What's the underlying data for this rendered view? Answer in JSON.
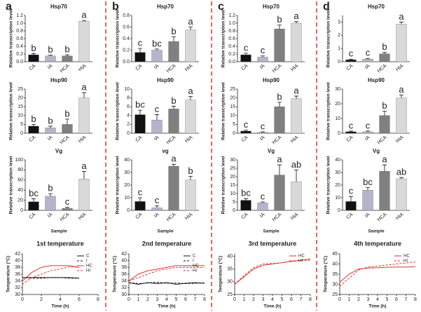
{
  "panels": [
    "a",
    "b",
    "c",
    "d"
  ],
  "chart_data": [
    {
      "type": "bar",
      "title": "Hsp70",
      "ylabel": "Relative transcription level",
      "categories": [
        "CA",
        "IA",
        "HCA",
        "HIA"
      ],
      "colors": [
        "#111111",
        "#b4b4cc",
        "#808080",
        "#d9d9d9"
      ],
      "values": [
        0.18,
        0.15,
        0.15,
        1.05
      ],
      "errors": [
        0.03,
        0.02,
        0.03,
        0.02
      ],
      "annotations": [
        "b",
        "b",
        "b",
        "a"
      ],
      "ylim": [
        0,
        1.2
      ],
      "yticks": [
        {
          "value": 0,
          "label": "0.0"
        },
        0.2,
        0.4,
        0.6,
        0.8,
        {
          "value": 1,
          "label": "1.0"
        },
        1.2
      ]
    },
    {
      "type": "bar",
      "title": "Hsp90",
      "ylabel": "Relative transcription level",
      "categories": [
        "CA",
        "IA",
        "HCA",
        "HIA"
      ],
      "colors": [
        "#111111",
        "#b4b4cc",
        "#808080",
        "#d9d9d9"
      ],
      "values": [
        4,
        3,
        5,
        20
      ],
      "errors": [
        1,
        1,
        3,
        3
      ],
      "annotations": [
        "b",
        "b",
        "b",
        "a"
      ],
      "ylim": [
        0,
        25
      ],
      "yticks": [
        0,
        5,
        10,
        15,
        20,
        25
      ]
    },
    {
      "type": "bar",
      "title": "Vg",
      "xlabel": "Sample",
      "ylabel": "Relative transcription level",
      "categories": [
        "CA",
        "IA",
        "HCA",
        "HIA"
      ],
      "colors": [
        "#111111",
        "#b4b4cc",
        "#808080",
        "#d9d9d9"
      ],
      "values": [
        17,
        28,
        4,
        62
      ],
      "errors": [
        6,
        5,
        2,
        15
      ],
      "annotations": [
        "bc",
        "b",
        "c",
        "a"
      ],
      "ylim": [
        0,
        100
      ],
      "yticks": [
        0,
        20,
        40,
        60,
        80,
        100
      ]
    },
    {
      "type": "line",
      "title": "1st temperature",
      "xlabel": "Time (h)",
      "ylabel": "Temperature (°C)",
      "x": [
        0,
        1,
        2,
        3,
        4,
        5,
        6
      ],
      "xlim": [
        0,
        8
      ],
      "xticks": [
        0,
        2,
        4,
        6,
        8
      ],
      "ylim": [
        30,
        42
      ],
      "yticks": [
        30,
        32,
        34,
        36,
        38,
        40,
        42
      ],
      "series": [
        {
          "name": "C",
          "color": "#111111",
          "dashed": false,
          "values": [
            35,
            35,
            35,
            35,
            35,
            35,
            34.8
          ]
        },
        {
          "name": "I",
          "color": "#111111",
          "dashed": true,
          "values": [
            35,
            34.8,
            34.8,
            35,
            35,
            34.8,
            34.8
          ]
        },
        {
          "name": "HC",
          "color": "#e0332b",
          "dashed": false,
          "values": [
            34,
            36.5,
            38,
            38.5,
            38.5,
            38.5,
            38
          ]
        },
        {
          "name": "HI",
          "color": "#e0332b",
          "dashed": true,
          "values": [
            33,
            35,
            36,
            37,
            37.5,
            38.2,
            38
          ]
        }
      ]
    },
    {
      "type": "bar",
      "title": "Hsp70",
      "ylabel": "Relative transcription level",
      "categories": [
        "CA",
        "IA",
        "HCA",
        "HIA"
      ],
      "colors": [
        "#111111",
        "#b4b4cc",
        "#808080",
        "#d9d9d9"
      ],
      "values": [
        0.16,
        0.2,
        0.35,
        0.55
      ],
      "errors": [
        0.07,
        0.02,
        0.08,
        0.05
      ],
      "annotations": [
        "c",
        "bc",
        "b",
        "a"
      ],
      "ylim": [
        0,
        0.8
      ],
      "yticks": [
        {
          "value": 0,
          "label": "0.0"
        },
        0.2,
        0.4,
        0.6,
        0.8
      ]
    },
    {
      "type": "bar",
      "title": "Hsp90",
      "ylabel": "Relative transcription level",
      "categories": [
        "CA",
        "IA",
        "HCA",
        "HIA"
      ],
      "colors": [
        "#111111",
        "#b4b4cc",
        "#808080",
        "#d9d9d9"
      ],
      "values": [
        4.2,
        3,
        5.5,
        7.5
      ],
      "errors": [
        1,
        1.2,
        0.6,
        0.8
      ],
      "annotations": [
        "bc",
        "c",
        "b",
        "a"
      ],
      "ylim": [
        0,
        10
      ],
      "yticks": [
        0,
        2,
        4,
        6,
        8,
        10
      ]
    },
    {
      "type": "bar",
      "title": "vg",
      "xlabel": "Sample",
      "ylabel": "Relative transcription level",
      "categories": [
        "CA",
        "IA",
        "HCA",
        "HIA"
      ],
      "colors": [
        "#111111",
        "#b4b4cc",
        "#808080",
        "#d9d9d9"
      ],
      "values": [
        7,
        2,
        35,
        24
      ],
      "errors": [
        3,
        1.5,
        1.5,
        3
      ],
      "annotations": [
        "c",
        "c",
        "a",
        "b"
      ],
      "ylim": [
        0,
        40
      ],
      "yticks": [
        0,
        10,
        20,
        30,
        40
      ]
    },
    {
      "type": "line",
      "title": "2nd temperature",
      "xlabel": "Time (h)",
      "ylabel": "Temperature (°C)",
      "x": [
        0,
        1,
        2,
        3,
        4,
        5,
        6,
        7,
        8
      ],
      "xlim": [
        0,
        8
      ],
      "xticks": [
        0,
        1,
        2,
        3,
        4,
        5,
        6,
        7,
        8
      ],
      "ylim": [
        30,
        42
      ],
      "yticks": [
        30,
        32,
        34,
        36,
        38,
        40,
        42
      ],
      "series": [
        {
          "name": "C",
          "color": "#111111",
          "dashed": false,
          "values": [
            33.5,
            33,
            33.5,
            33.2,
            33.5,
            33,
            33.3,
            33.5,
            33.3
          ]
        },
        {
          "name": "I",
          "color": "#111111",
          "dashed": true,
          "values": [
            33.5,
            33.2,
            33.4,
            33.6,
            33.3,
            33.4,
            33.2,
            33.3,
            33.4
          ]
        },
        {
          "name": "HC",
          "color": "#e0332b",
          "dashed": false,
          "values": [
            34,
            36,
            37,
            37.5,
            38,
            38.5,
            38.5,
            38.5,
            38.5
          ]
        },
        {
          "name": "HI",
          "color": "#e0332b",
          "dashed": true,
          "values": [
            34,
            35,
            36,
            37,
            37.5,
            38,
            38,
            38,
            38
          ]
        }
      ]
    },
    {
      "type": "bar",
      "title": "Hsp70",
      "ylabel": "Relative transcription level",
      "categories": [
        "CA",
        "IA",
        "HCA",
        "HIA"
      ],
      "colors": [
        "#111111",
        "#b4b4cc",
        "#808080",
        "#d9d9d9"
      ],
      "values": [
        0.18,
        0.12,
        0.85,
        1.0
      ],
      "errors": [
        0.04,
        0.03,
        0.1,
        0.04
      ],
      "annotations": [
        "c",
        "c",
        "b",
        "a"
      ],
      "ylim": [
        0,
        1.2
      ],
      "yticks": [
        {
          "value": 0,
          "label": "0.0"
        },
        0.2,
        0.4,
        0.6,
        0.8,
        {
          "value": 1,
          "label": "1.0"
        },
        1.2
      ]
    },
    {
      "type": "bar",
      "title": "Hsp90",
      "ylabel": "Relative transcription level",
      "categories": [
        "CA",
        "IA",
        "HCA",
        "HIA"
      ],
      "colors": [
        "#111111",
        "#b4b4cc",
        "#808080",
        "#d9d9d9"
      ],
      "values": [
        1.2,
        0.5,
        15,
        19.5
      ],
      "errors": [
        0.5,
        0.3,
        2.5,
        1.5
      ],
      "annotations": [
        "c",
        "c",
        "b",
        "a"
      ],
      "ylim": [
        0,
        25
      ],
      "yticks": [
        0,
        5,
        10,
        15,
        20,
        25
      ]
    },
    {
      "type": "bar",
      "title": "Vg",
      "xlabel": "Sample",
      "ylabel": "Relative transcription level",
      "categories": [
        "CA",
        "IA",
        "HCA",
        "HIA"
      ],
      "colors": [
        "#111111",
        "#b4b4cc",
        "#808080",
        "#d9d9d9"
      ],
      "values": [
        6,
        4.5,
        21,
        17
      ],
      "errors": [
        1,
        0.5,
        6,
        7
      ],
      "annotations": [
        "bc",
        "c",
        "a",
        "ab"
      ],
      "ylim": [
        0,
        30
      ],
      "yticks": [
        0,
        5,
        10,
        15,
        20,
        25,
        30
      ]
    },
    {
      "type": "line",
      "title": "3rd temperature",
      "xlabel": "Time (h)",
      "ylabel": "Temperature (°C)",
      "x": [
        0,
        1,
        2,
        3,
        4,
        5,
        6,
        7,
        8
      ],
      "xlim": [
        0,
        8
      ],
      "xticks": [
        0,
        1,
        2,
        3,
        4,
        5,
        6,
        7,
        8
      ],
      "ylim": [
        25,
        41
      ],
      "yticks": [
        25,
        30,
        35,
        40
      ],
      "series": [
        {
          "name": "HC",
          "color": "#e0332b",
          "dashed": false,
          "values": [
            29,
            32,
            35,
            36.5,
            37,
            37.5,
            38,
            38.5,
            39
          ]
        },
        {
          "name": "HI",
          "color": "#e0332b",
          "dashed": true,
          "values": [
            29,
            32.5,
            35.5,
            37,
            37.2,
            37.5,
            38,
            38.3,
            38.5
          ]
        }
      ]
    },
    {
      "type": "bar",
      "title": "Hsp70",
      "ylabel": "Relative transcription level",
      "categories": [
        "CA",
        "IA",
        "HCA",
        "HIA"
      ],
      "colors": [
        "#111111",
        "#b4b4cc",
        "#808080",
        "#d9d9d9"
      ],
      "values": [
        0.15,
        0.2,
        0.6,
        2.85
      ],
      "errors": [
        0.05,
        0.05,
        0.1,
        0.15
      ],
      "annotations": [
        "c",
        "c",
        "b",
        "a"
      ],
      "ylim": [
        0,
        3.5
      ],
      "yticks": [
        0,
        1,
        2,
        3
      ]
    },
    {
      "type": "bar",
      "title": "Hsp90",
      "ylabel": "Relative transcription level",
      "categories": [
        "CA",
        "IA",
        "HCA",
        "HIA"
      ],
      "colors": [
        "#111111",
        "#b4b4cc",
        "#808080",
        "#d9d9d9"
      ],
      "values": [
        1,
        1,
        12,
        24
      ],
      "errors": [
        0.5,
        0.5,
        3,
        2
      ],
      "annotations": [
        "c",
        "c",
        "b",
        "a"
      ],
      "ylim": [
        0,
        30
      ],
      "yticks": [
        0,
        10,
        20,
        30
      ]
    },
    {
      "type": "bar",
      "title": "Vg",
      "xlabel": "Sample",
      "ylabel": "Relative transcription level",
      "categories": [
        "CA",
        "IA",
        "HCA",
        "HIA"
      ],
      "colors": [
        "#111111",
        "#b4b4cc",
        "#808080",
        "#d9d9d9"
      ],
      "values": [
        7,
        16,
        31,
        25
      ],
      "errors": [
        4,
        2,
        5,
        1
      ],
      "annotations": [
        "c",
        "bc",
        "a",
        "ab"
      ],
      "ylim": [
        0,
        40
      ],
      "yticks": [
        0,
        10,
        20,
        30,
        40
      ]
    },
    {
      "type": "line",
      "title": "4th temperature",
      "xlabel": "Time (h)",
      "ylabel": "Temperature (°C)",
      "x": [
        0,
        1,
        2,
        3,
        4,
        5,
        6,
        7,
        8
      ],
      "xlim": [
        0,
        8
      ],
      "xticks": [
        0,
        1,
        2,
        3,
        4,
        5,
        6,
        7,
        8
      ],
      "ylim": [
        25,
        45
      ],
      "yticks": [
        25,
        30,
        35,
        40,
        45
      ],
      "series": [
        {
          "name": "HC",
          "color": "#e0332b",
          "dashed": false,
          "values": [
            31,
            35,
            37.5,
            38,
            38.2,
            38.4,
            38.5,
            38.5,
            38.6
          ]
        },
        {
          "name": "HI",
          "color": "#e0332b",
          "dashed": true,
          "values": [
            29,
            33,
            37,
            38.5,
            39,
            39.5,
            40,
            40.5,
            41
          ]
        }
      ]
    }
  ]
}
